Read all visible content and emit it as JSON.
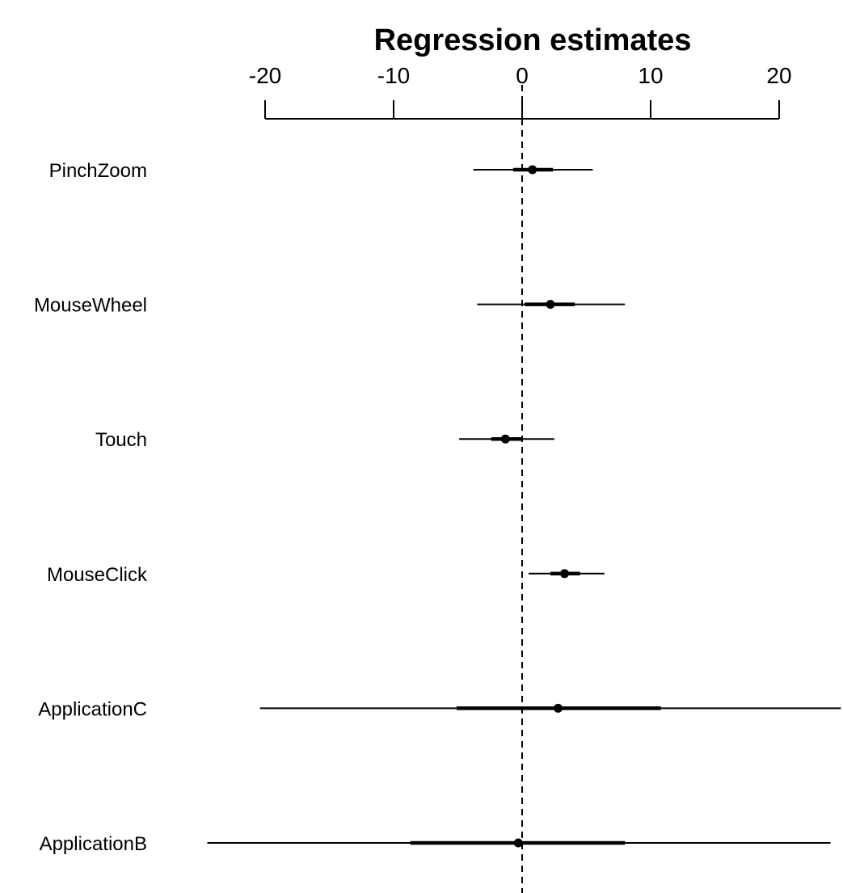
{
  "chart_data": {
    "type": "forest",
    "title": "Regression estimates",
    "xlabel": "",
    "ylabel": "",
    "xlim": [
      -20,
      20
    ],
    "x_ticks": [
      -20,
      -10,
      0,
      10,
      20
    ],
    "reference_line": 0,
    "grid": false,
    "legend": "none",
    "rows": [
      {
        "label": "PinchZoom",
        "estimate": 0.8,
        "inner": [
          -0.7,
          2.4
        ],
        "outer": [
          -3.8,
          5.5
        ]
      },
      {
        "label": "MouseWheel",
        "estimate": 2.2,
        "inner": [
          0.2,
          4.1
        ],
        "outer": [
          -3.5,
          8.0
        ]
      },
      {
        "label": "Touch",
        "estimate": -1.3,
        "inner": [
          -2.4,
          0.0
        ],
        "outer": [
          -4.9,
          2.5
        ]
      },
      {
        "label": "MouseClick",
        "estimate": 3.3,
        "inner": [
          2.2,
          4.5
        ],
        "outer": [
          0.5,
          6.4
        ]
      },
      {
        "label": "ApplicationC",
        "estimate": 2.8,
        "inner": [
          -5.1,
          10.8
        ],
        "outer": [
          -20.4,
          24.8
        ]
      },
      {
        "label": "ApplicationB",
        "estimate": -0.3,
        "inner": [
          -8.7,
          8.0
        ],
        "outer": [
          -24.5,
          24.0
        ]
      }
    ]
  }
}
